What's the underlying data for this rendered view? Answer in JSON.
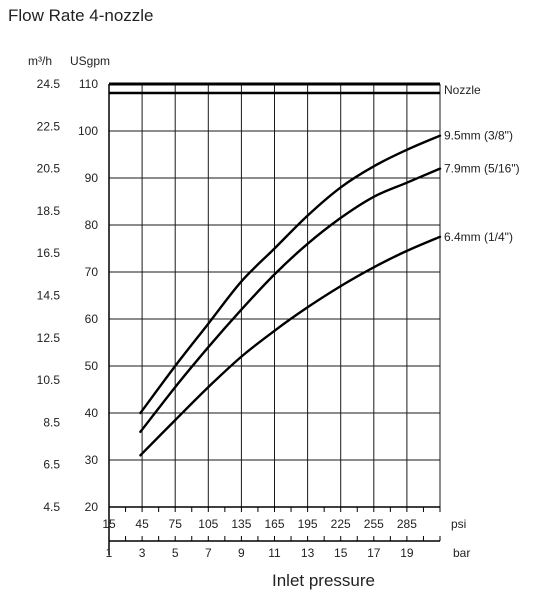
{
  "chart_data": {
    "type": "line",
    "title": "Flow Rate 4-nozzle",
    "xlabel": "Inlet pressure",
    "x_unit_primary": "psi",
    "x_unit_secondary": "bar",
    "y_unit_primary": "USgpm",
    "y_unit_secondary": "m³/h",
    "xlim": [
      15,
      315
    ],
    "ylim": [
      20,
      110
    ],
    "x_ticks": [
      15,
      45,
      75,
      105,
      135,
      165,
      195,
      225,
      255,
      285
    ],
    "x_ticks_labels": [
      "15",
      "45",
      "75",
      "105",
      "135",
      "165",
      "195",
      "225",
      "255",
      "285"
    ],
    "bar_ticks": [
      1,
      3,
      5,
      7,
      9,
      11,
      13,
      15,
      17,
      19
    ],
    "bar_ticks_labels": [
      "1",
      "3",
      "5",
      "7",
      "9",
      "11",
      "13",
      "15",
      "17",
      "19"
    ],
    "y_ticks": [
      20,
      30,
      40,
      50,
      60,
      70,
      80,
      90,
      100,
      110
    ],
    "y_ticks_labels": [
      "20",
      "30",
      "40",
      "50",
      "60",
      "70",
      "80",
      "90",
      "100",
      "110"
    ],
    "m3h_ticks": [
      4.5,
      6.5,
      8.5,
      10.5,
      12.5,
      14.5,
      16.5,
      18.5,
      20.5,
      22.5,
      24.5
    ],
    "m3h_ticks_labels": [
      "4.5",
      "6.5",
      "8.5",
      "10.5",
      "12.5",
      "14.5",
      "16.5",
      "18.5",
      "20.5",
      "22.5",
      "24.5"
    ],
    "grid": true,
    "legend_header": "Nozzle",
    "series": [
      {
        "name": "9.5mm (3/8\")",
        "x": [
          43.5,
          75,
          105,
          135,
          165,
          195,
          225,
          255,
          285,
          315
        ],
        "values": [
          40,
          50,
          59,
          68,
          75,
          82,
          88,
          92.5,
          96,
          99
        ]
      },
      {
        "name": "7.9mm (5/16\")",
        "x": [
          43.5,
          75,
          105,
          135,
          165,
          195,
          225,
          255,
          285,
          315
        ],
        "values": [
          36,
          45.5,
          54,
          62,
          69.5,
          76,
          81.5,
          86,
          89,
          92
        ]
      },
      {
        "name": "6.4mm (1/4\")",
        "x": [
          43.5,
          75,
          105,
          135,
          165,
          195,
          225,
          255,
          285,
          315
        ],
        "values": [
          31,
          38.5,
          45.5,
          52,
          57.5,
          62.5,
          67,
          71,
          74.5,
          77.5
        ]
      }
    ]
  }
}
